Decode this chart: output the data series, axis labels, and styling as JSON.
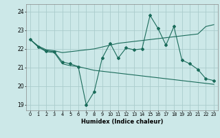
{
  "xlabel": "Humidex (Indice chaleur)",
  "bg_color": "#cce8e8",
  "grid_color": "#aacccc",
  "line_color": "#1a6b5a",
  "x_values": [
    0,
    1,
    2,
    3,
    4,
    5,
    6,
    7,
    8,
    9,
    10,
    11,
    12,
    13,
    14,
    15,
    16,
    17,
    18,
    19,
    20,
    21,
    22,
    23
  ],
  "series_main": [
    22.5,
    22.1,
    21.9,
    21.85,
    21.3,
    21.2,
    21.05,
    19.0,
    19.7,
    21.5,
    22.3,
    21.5,
    22.05,
    21.95,
    22.0,
    23.8,
    23.1,
    22.2,
    23.2,
    21.4,
    21.2,
    20.9,
    20.4,
    20.3
  ],
  "series_upper": [
    22.5,
    22.15,
    21.95,
    21.9,
    21.8,
    21.85,
    21.9,
    21.95,
    22.0,
    22.1,
    22.2,
    22.3,
    22.35,
    22.4,
    22.45,
    22.5,
    22.55,
    22.6,
    22.65,
    22.7,
    22.75,
    22.8,
    23.2,
    23.3
  ],
  "series_lower": [
    22.5,
    22.1,
    21.85,
    21.8,
    21.2,
    21.1,
    21.05,
    20.95,
    20.85,
    20.8,
    20.75,
    20.7,
    20.65,
    20.6,
    20.55,
    20.5,
    20.45,
    20.4,
    20.35,
    20.3,
    20.25,
    20.2,
    20.15,
    20.1
  ],
  "ylim": [
    18.7,
    24.4
  ],
  "yticks": [
    19,
    20,
    21,
    22,
    23,
    24
  ],
  "xticks": [
    0,
    1,
    2,
    3,
    4,
    5,
    6,
    7,
    8,
    9,
    10,
    11,
    12,
    13,
    14,
    15,
    16,
    17,
    18,
    19,
    20,
    21,
    22,
    23
  ]
}
